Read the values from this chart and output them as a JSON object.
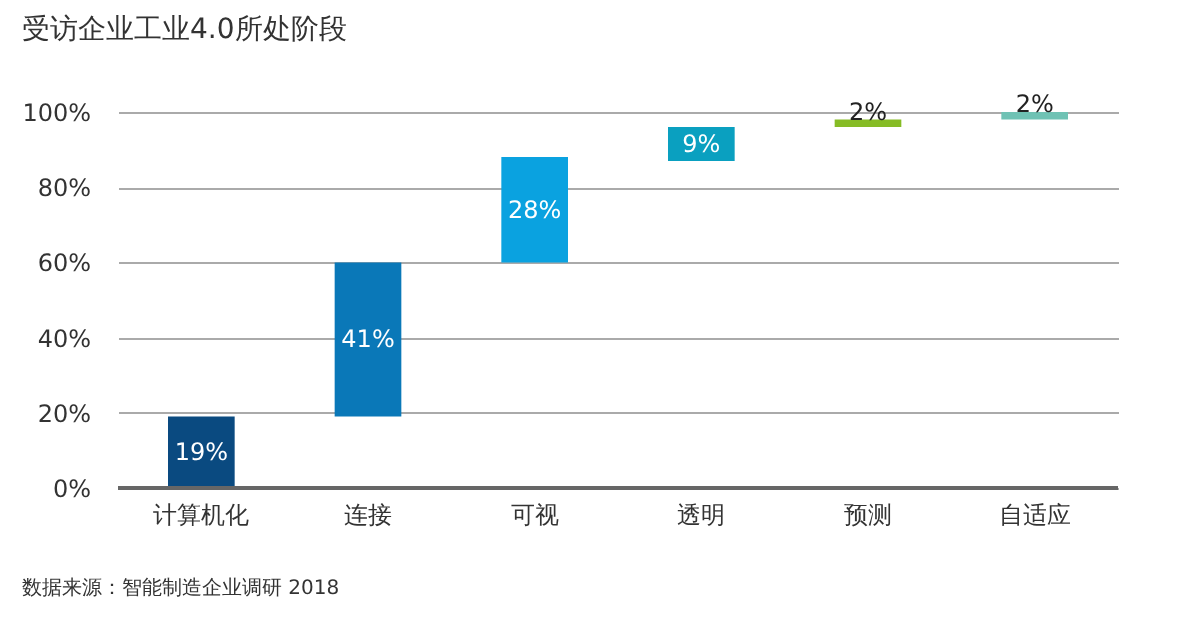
{
  "chart_data": {
    "type": "bar",
    "title": "受访企业工业4.0所处阶段",
    "categories": [
      "计算机化",
      "连接",
      "可视",
      "透明",
      "预测",
      "自适应"
    ],
    "values": [
      19,
      41,
      28,
      9,
      2,
      2
    ],
    "base": [
      0,
      19,
      60,
      87,
      96,
      98
    ],
    "colors": [
      "#0a4a80",
      "#0a78b8",
      "#0aa2e0",
      "#0aa0c0",
      "#86bc25",
      "#6fc2b4"
    ],
    "value_labels": [
      "19%",
      "41%",
      "28%",
      "9%",
      "2%",
      "2%"
    ],
    "ylim": [
      0,
      100
    ],
    "yticks": [
      {
        "value": 0,
        "label": "0%"
      },
      {
        "value": 20,
        "label": "20%"
      },
      {
        "value": 40,
        "label": "40%"
      },
      {
        "value": 60,
        "label": "60%"
      },
      {
        "value": 80,
        "label": "80%"
      },
      {
        "value": 100,
        "label": "100%"
      }
    ],
    "grid": "y",
    "annotations": [
      "数据来源：智能制造企业调研 2018"
    ]
  }
}
